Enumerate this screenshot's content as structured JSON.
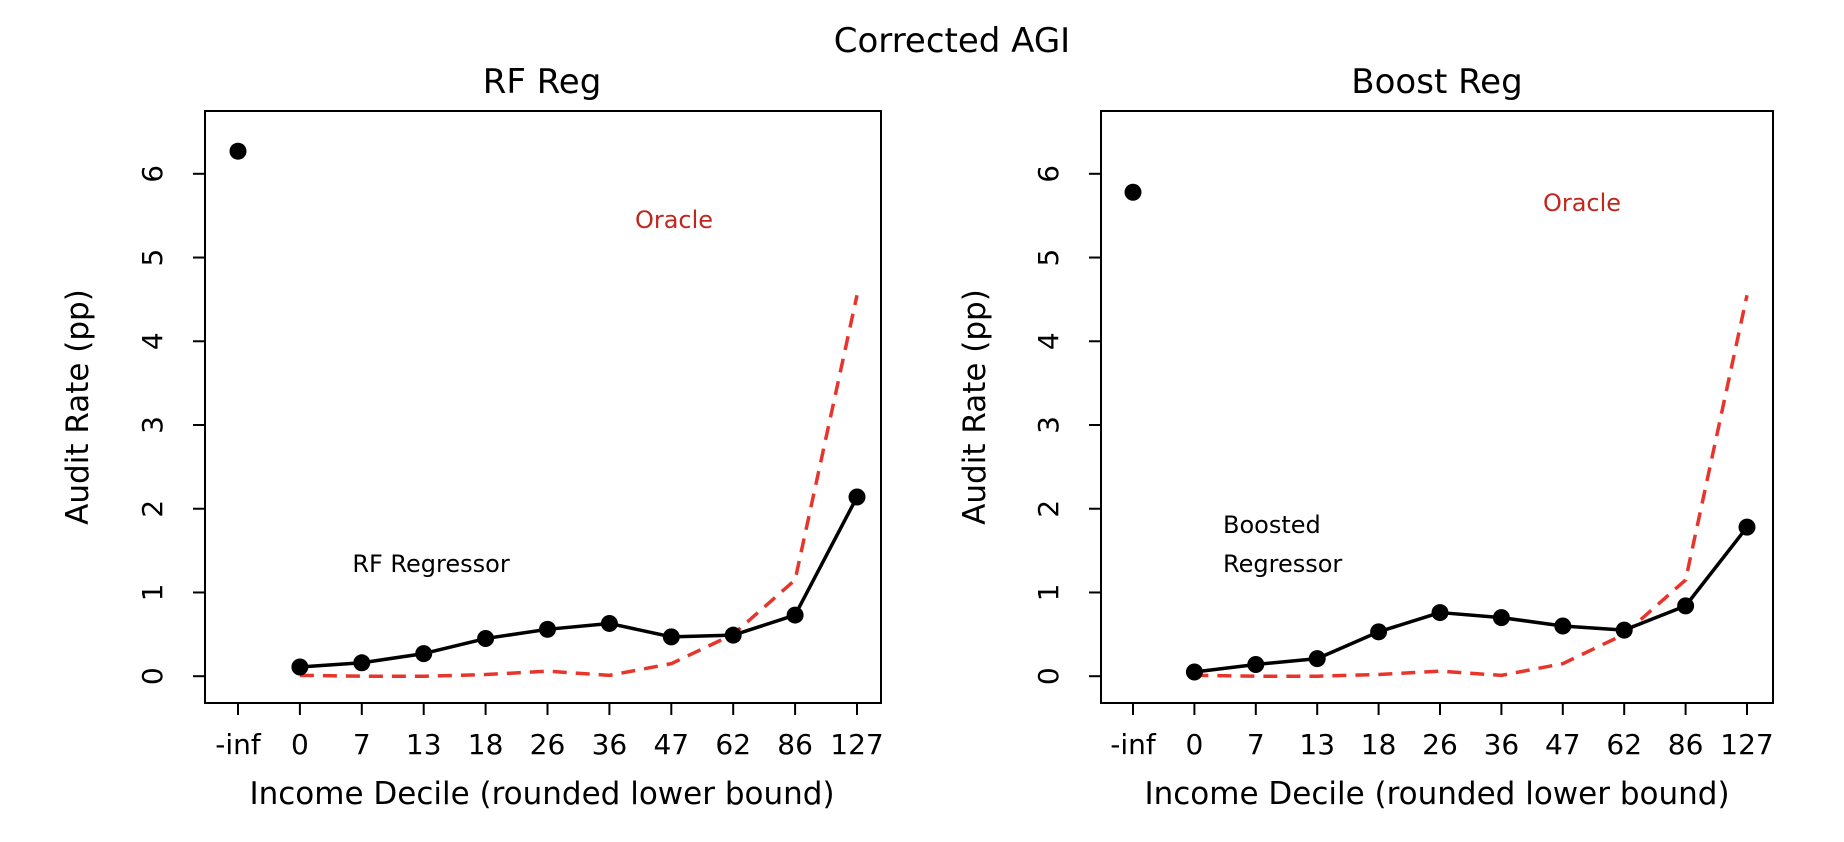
{
  "chart_data": {
    "title": "Corrected AGI",
    "panels": [
      {
        "type": "line",
        "title": "RF Reg",
        "xlabel": "Income Decile (rounded lower bound)",
        "ylabel": "Audit Rate (pp)",
        "categories": [
          "-inf",
          "0",
          "7",
          "13",
          "18",
          "26",
          "36",
          "47",
          "62",
          "86",
          "127"
        ],
        "yticks": [
          "0",
          "1",
          "2",
          "3",
          "4",
          "5",
          "6"
        ],
        "ylim": [
          -0.32,
          6.75
        ],
        "series": [
          {
            "name": "RF Regressor",
            "style": "solid-markers",
            "color": "#000000",
            "isolated_first_point": true,
            "values": [
              6.27,
              0.11,
              0.16,
              0.27,
              0.45,
              0.56,
              0.63,
              0.47,
              0.49,
              0.73,
              2.14
            ]
          },
          {
            "name": "Oracle",
            "style": "dashed",
            "color": "#e8352b",
            "values": [
              null,
              0.01,
              0.0,
              0.0,
              0.02,
              0.06,
              0.01,
              0.15,
              0.5,
              1.15,
              4.55
            ]
          }
        ],
        "annotations": [
          {
            "text": "Oracle",
            "color": "#c0271e"
          },
          {
            "text": "RF Regressor",
            "color": "#000000"
          }
        ]
      },
      {
        "type": "line",
        "title": "Boost Reg",
        "xlabel": "Income Decile (rounded lower bound)",
        "ylabel": "Audit Rate (pp)",
        "categories": [
          "-inf",
          "0",
          "7",
          "13",
          "18",
          "26",
          "36",
          "47",
          "62",
          "86",
          "127"
        ],
        "yticks": [
          "0",
          "1",
          "2",
          "3",
          "4",
          "5",
          "6"
        ],
        "ylim": [
          -0.32,
          6.75
        ],
        "series": [
          {
            "name": "Boosted Regressor",
            "style": "solid-markers",
            "color": "#000000",
            "isolated_first_point": true,
            "values": [
              5.78,
              0.05,
              0.14,
              0.21,
              0.53,
              0.76,
              0.7,
              0.6,
              0.55,
              0.84,
              1.78
            ]
          },
          {
            "name": "Oracle",
            "style": "dashed",
            "color": "#e8352b",
            "values": [
              null,
              0.01,
              0.0,
              0.0,
              0.02,
              0.06,
              0.01,
              0.15,
              0.5,
              1.15,
              4.55
            ]
          }
        ],
        "annotations": [
          {
            "text": "Oracle",
            "color": "#c0271e"
          },
          {
            "text": "Boosted",
            "color": "#000000"
          },
          {
            "text": "Regressor",
            "color": "#000000"
          }
        ]
      }
    ]
  }
}
